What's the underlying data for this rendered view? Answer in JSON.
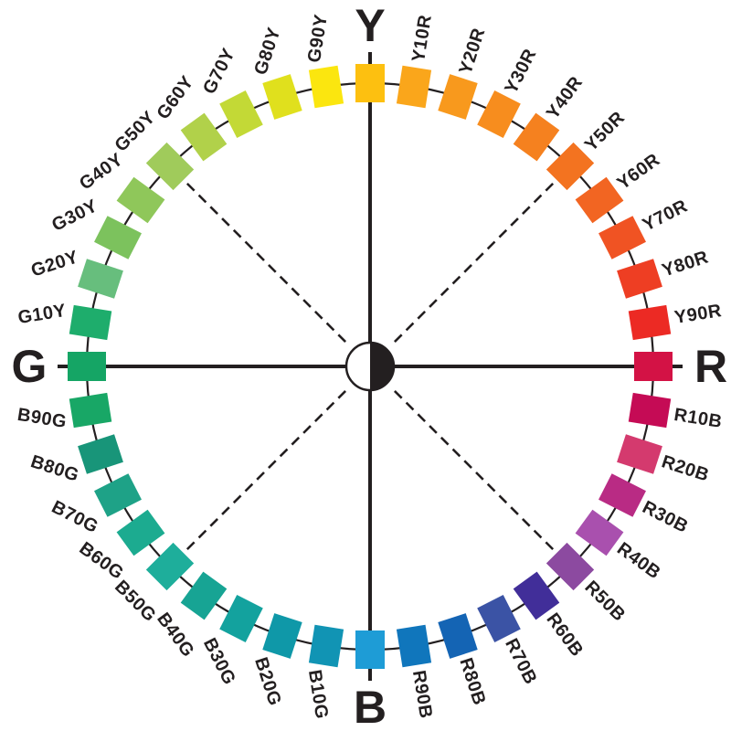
{
  "diagram": {
    "type": "color-circle",
    "description": "Hue circle with four cardinal hues and nine intermediate steps per quadrant",
    "background": "#FFFFFF",
    "line_color": "#231F20",
    "center_symbol": "half-white-half-black-circle",
    "cardinal_hues": [
      "Y",
      "R",
      "B",
      "G"
    ],
    "swatches": [
      {
        "label": "Y",
        "angle": 0,
        "color": "#FDC010",
        "cardinal": true
      },
      {
        "label": "Y10R",
        "angle": 9,
        "color": "#FAA61B",
        "cardinal": false
      },
      {
        "label": "Y20R",
        "angle": 18,
        "color": "#F8991D",
        "cardinal": false
      },
      {
        "label": "Y30R",
        "angle": 27,
        "color": "#F78D1E",
        "cardinal": false
      },
      {
        "label": "Y40R",
        "angle": 36,
        "color": "#F5811F",
        "cardinal": false
      },
      {
        "label": "Y50R",
        "angle": 45,
        "color": "#F37320",
        "cardinal": false
      },
      {
        "label": "Y60R",
        "angle": 54,
        "color": "#F26522",
        "cardinal": false
      },
      {
        "label": "Y70R",
        "angle": 63,
        "color": "#F05323",
        "cardinal": false
      },
      {
        "label": "Y80R",
        "angle": 72,
        "color": "#EE3E23",
        "cardinal": false
      },
      {
        "label": "Y90R",
        "angle": 81,
        "color": "#EC2A24",
        "cardinal": false
      },
      {
        "label": "R",
        "angle": 90,
        "color": "#D31245",
        "cardinal": true
      },
      {
        "label": "R10B",
        "angle": 99,
        "color": "#C50B55",
        "cardinal": false
      },
      {
        "label": "R20B",
        "angle": 108,
        "color": "#D43A6E",
        "cardinal": false
      },
      {
        "label": "R30B",
        "angle": 117,
        "color": "#B92B84",
        "cardinal": false
      },
      {
        "label": "R40B",
        "angle": 126,
        "color": "#A950AE",
        "cardinal": false
      },
      {
        "label": "R50B",
        "angle": 135,
        "color": "#8C4AA0",
        "cardinal": false
      },
      {
        "label": "R60B",
        "angle": 144,
        "color": "#412E99",
        "cardinal": false
      },
      {
        "label": "R70B",
        "angle": 153,
        "color": "#3B53A5",
        "cardinal": false
      },
      {
        "label": "R80B",
        "angle": 162,
        "color": "#1464B4",
        "cardinal": false
      },
      {
        "label": "R90B",
        "angle": 171,
        "color": "#1076BC",
        "cardinal": false
      },
      {
        "label": "B",
        "angle": 180,
        "color": "#1E9CD6",
        "cardinal": true
      },
      {
        "label": "B10G",
        "angle": 189,
        "color": "#1194B4",
        "cardinal": false
      },
      {
        "label": "B20G",
        "angle": 198,
        "color": "#0F98A8",
        "cardinal": false
      },
      {
        "label": "B30G",
        "angle": 207,
        "color": "#13A29E",
        "cardinal": false
      },
      {
        "label": "B40G",
        "angle": 216,
        "color": "#17A494",
        "cardinal": false
      },
      {
        "label": "B50G",
        "angle": 225,
        "color": "#1EAE9B",
        "cardinal": false
      },
      {
        "label": "B60G",
        "angle": 234,
        "color": "#1CAB90",
        "cardinal": false
      },
      {
        "label": "B70G",
        "angle": 243,
        "color": "#1EA287",
        "cardinal": false
      },
      {
        "label": "B80G",
        "angle": 252,
        "color": "#189579",
        "cardinal": false
      },
      {
        "label": "B90G",
        "angle": 261,
        "color": "#18A766",
        "cardinal": false
      },
      {
        "label": "G",
        "angle": 270,
        "color": "#15A565",
        "cardinal": true
      },
      {
        "label": "G10Y",
        "angle": 279,
        "color": "#1EAD6C",
        "cardinal": false
      },
      {
        "label": "G20Y",
        "angle": 288,
        "color": "#67BE7D",
        "cardinal": false
      },
      {
        "label": "G30Y",
        "angle": 297,
        "color": "#7CC25D",
        "cardinal": false
      },
      {
        "label": "G40Y",
        "angle": 306,
        "color": "#8FC75A",
        "cardinal": false
      },
      {
        "label": "G50Y",
        "angle": 315,
        "color": "#A0CB5B",
        "cardinal": false
      },
      {
        "label": "G60Y",
        "angle": 324,
        "color": "#B1D14A",
        "cardinal": false
      },
      {
        "label": "G70Y",
        "angle": 333,
        "color": "#C3D936",
        "cardinal": false
      },
      {
        "label": "G80Y",
        "angle": 342,
        "color": "#E0E01D",
        "cardinal": false
      },
      {
        "label": "G90Y",
        "angle": 351,
        "color": "#FBE60F",
        "cardinal": false
      }
    ]
  }
}
